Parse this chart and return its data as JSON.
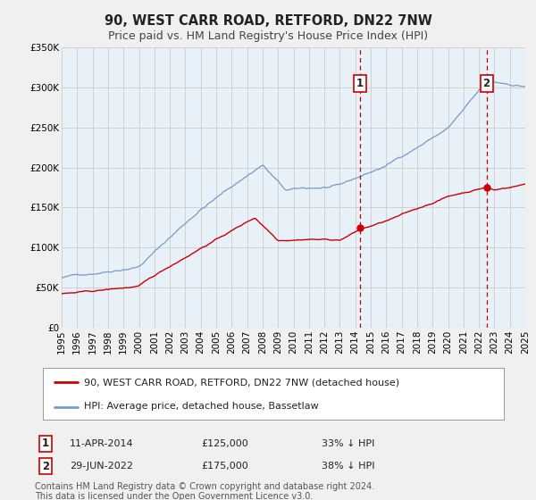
{
  "title": "90, WEST CARR ROAD, RETFORD, DN22 7NW",
  "subtitle": "Price paid vs. HM Land Registry's House Price Index (HPI)",
  "xlim": [
    1995,
    2025
  ],
  "ylim": [
    0,
    350000
  ],
  "yticks": [
    0,
    50000,
    100000,
    150000,
    200000,
    250000,
    300000,
    350000
  ],
  "ytick_labels": [
    "£0",
    "£50K",
    "£100K",
    "£150K",
    "£200K",
    "£250K",
    "£300K",
    "£350K"
  ],
  "background_color": "#f0f0f0",
  "plot_bg_color": "#e8f0f8",
  "grid_color": "#cccccc",
  "red_line_color": "#cc0000",
  "blue_line_color": "#7799cc",
  "vline_color": "#cc0000",
  "marker1_date": 2014.28,
  "marker1_value": 125000,
  "marker2_date": 2022.49,
  "marker2_value": 175000,
  "legend_label1": "90, WEST CARR ROAD, RETFORD, DN22 7NW (detached house)",
  "legend_label2": "HPI: Average price, detached house, Bassetlaw",
  "annotation1_num": "1",
  "annotation1_date": "11-APR-2014",
  "annotation1_price": "£125,000",
  "annotation1_hpi": "33% ↓ HPI",
  "annotation2_num": "2",
  "annotation2_date": "29-JUN-2022",
  "annotation2_price": "£175,000",
  "annotation2_hpi": "38% ↓ HPI",
  "footnote1": "Contains HM Land Registry data © Crown copyright and database right 2024.",
  "footnote2": "This data is licensed under the Open Government Licence v3.0.",
  "title_fontsize": 10.5,
  "subtitle_fontsize": 9,
  "tick_fontsize": 7.5,
  "legend_fontsize": 8,
  "annotation_fontsize": 8,
  "footnote_fontsize": 7
}
